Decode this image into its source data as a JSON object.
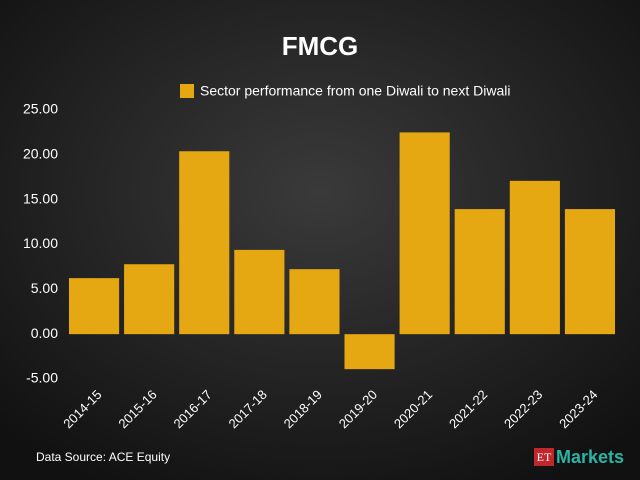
{
  "chart_data": {
    "type": "bar",
    "title": "FMCG",
    "legend_label": "Sector performance from one Diwali to next Diwali",
    "categories": [
      "2014-15",
      "2015-16",
      "2016-17",
      "2017-18",
      "2018-19",
      "2019-20",
      "2020-21",
      "2021-22",
      "2022-23",
      "2023-24"
    ],
    "values": [
      6.25,
      7.8,
      20.4,
      9.4,
      7.25,
      -3.9,
      22.5,
      13.95,
      17.1,
      13.95
    ],
    "color": "#e5a812",
    "ylim": [
      -5,
      25
    ],
    "yticks": [
      {
        "value": 25,
        "label": "25.00"
      },
      {
        "value": 20,
        "label": "20.00"
      },
      {
        "value": 15,
        "label": "15.00"
      },
      {
        "value": 10,
        "label": "10.00"
      },
      {
        "value": 5,
        "label": "5.00"
      },
      {
        "value": 0,
        "label": "0.00"
      },
      {
        "value": -5,
        "label": "-5.00"
      }
    ],
    "grid": false,
    "source": "Data Source: ACE Equity",
    "logo": {
      "prefix": "ET",
      "name": "Markets"
    }
  }
}
